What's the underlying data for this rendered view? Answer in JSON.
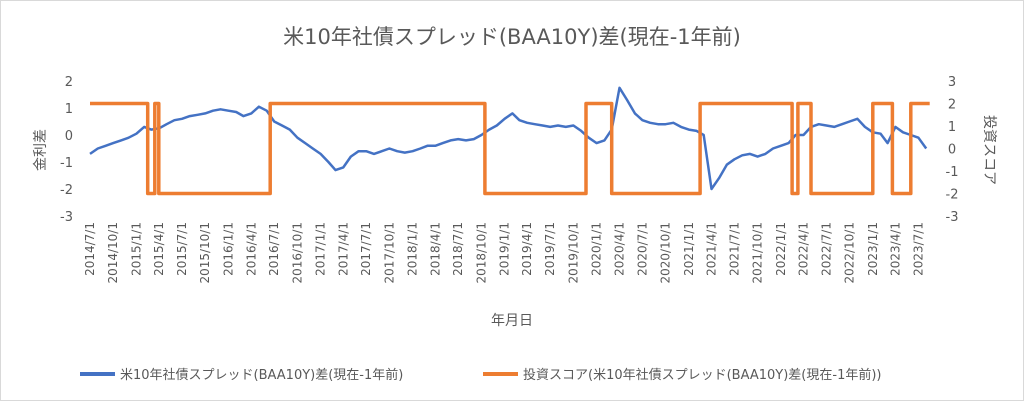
{
  "chart_data": {
    "type": "line",
    "title": "米10年社債スプレッド(BAA10Y)差(現在-1年前)",
    "xlabel": "年月日",
    "ylabel_left": "金利差",
    "ylabel_right": "投資スコア",
    "ylim_left": [
      -3,
      2
    ],
    "ylim_right": [
      -3,
      3
    ],
    "yticks_left": [
      "2",
      "1",
      "0",
      "-1",
      "-2",
      "-3"
    ],
    "yticks_right": [
      "3",
      "2",
      "1",
      "0",
      "-1",
      "-2",
      "-3"
    ],
    "xrange": [
      "2014-07-01",
      "2023-09-01"
    ],
    "xticks": [
      "2014/7/1",
      "2014/10/1",
      "2015/1/1",
      "2015/4/1",
      "2015/7/1",
      "2015/10/1",
      "2016/1/1",
      "2016/4/1",
      "2016/7/1",
      "2016/10/1",
      "2017/1/1",
      "2017/4/1",
      "2017/7/1",
      "2017/10/1",
      "2018/1/1",
      "2018/4/1",
      "2018/7/1",
      "2018/10/1",
      "2019/1/1",
      "2019/4/1",
      "2019/7/1",
      "2019/10/1",
      "2020/1/1",
      "2020/4/1",
      "2020/7/1",
      "2020/10/1",
      "2021/1/1",
      "2021/4/1",
      "2021/7/1",
      "2021/10/1",
      "2022/1/1",
      "2022/4/1",
      "2022/7/1",
      "2022/10/1",
      "2023/1/1",
      "2023/4/1",
      "2023/7/1"
    ],
    "grid": false,
    "legend_position": "bottom",
    "series": [
      {
        "name": "米10年社債スプレッド(BAA10Y)差(現在-1年前)",
        "axis": "left",
        "color": "#4472C4",
        "points": [
          [
            "2014-07-01",
            -0.7
          ],
          [
            "2014-08-01",
            -0.5
          ],
          [
            "2014-09-01",
            -0.4
          ],
          [
            "2014-10-01",
            -0.3
          ],
          [
            "2014-11-01",
            -0.2
          ],
          [
            "2014-12-01",
            -0.1
          ],
          [
            "2015-01-01",
            0.05
          ],
          [
            "2015-02-01",
            0.3
          ],
          [
            "2015-03-01",
            0.2
          ],
          [
            "2015-04-01",
            0.25
          ],
          [
            "2015-05-01",
            0.4
          ],
          [
            "2015-06-01",
            0.55
          ],
          [
            "2015-07-01",
            0.6
          ],
          [
            "2015-08-01",
            0.7
          ],
          [
            "2015-09-01",
            0.75
          ],
          [
            "2015-10-01",
            0.8
          ],
          [
            "2015-11-01",
            0.9
          ],
          [
            "2015-12-01",
            0.95
          ],
          [
            "2016-01-01",
            0.9
          ],
          [
            "2016-02-01",
            0.85
          ],
          [
            "2016-03-01",
            0.7
          ],
          [
            "2016-04-01",
            0.8
          ],
          [
            "2016-05-01",
            1.05
          ],
          [
            "2016-06-01",
            0.9
          ],
          [
            "2016-07-01",
            0.5
          ],
          [
            "2016-08-01",
            0.35
          ],
          [
            "2016-09-01",
            0.2
          ],
          [
            "2016-10-01",
            -0.1
          ],
          [
            "2016-11-01",
            -0.3
          ],
          [
            "2016-12-01",
            -0.5
          ],
          [
            "2017-01-01",
            -0.7
          ],
          [
            "2017-02-01",
            -1.0
          ],
          [
            "2017-03-01",
            -1.3
          ],
          [
            "2017-04-01",
            -1.2
          ],
          [
            "2017-05-01",
            -0.8
          ],
          [
            "2017-06-01",
            -0.6
          ],
          [
            "2017-07-01",
            -0.6
          ],
          [
            "2017-08-01",
            -0.7
          ],
          [
            "2017-09-01",
            -0.6
          ],
          [
            "2017-10-01",
            -0.5
          ],
          [
            "2017-11-01",
            -0.6
          ],
          [
            "2017-12-01",
            -0.65
          ],
          [
            "2018-01-01",
            -0.6
          ],
          [
            "2018-02-01",
            -0.5
          ],
          [
            "2018-03-01",
            -0.4
          ],
          [
            "2018-04-01",
            -0.4
          ],
          [
            "2018-05-01",
            -0.3
          ],
          [
            "2018-06-01",
            -0.2
          ],
          [
            "2018-07-01",
            -0.15
          ],
          [
            "2018-08-01",
            -0.2
          ],
          [
            "2018-09-01",
            -0.15
          ],
          [
            "2018-10-01",
            0.0
          ],
          [
            "2018-11-01",
            0.2
          ],
          [
            "2018-12-01",
            0.35
          ],
          [
            "2019-01-01",
            0.6
          ],
          [
            "2019-02-01",
            0.8
          ],
          [
            "2019-03-01",
            0.55
          ],
          [
            "2019-04-01",
            0.45
          ],
          [
            "2019-05-01",
            0.4
          ],
          [
            "2019-06-01",
            0.35
          ],
          [
            "2019-07-01",
            0.3
          ],
          [
            "2019-08-01",
            0.35
          ],
          [
            "2019-09-01",
            0.3
          ],
          [
            "2019-10-01",
            0.35
          ],
          [
            "2019-11-01",
            0.15
          ],
          [
            "2019-12-01",
            -0.1
          ],
          [
            "2020-01-01",
            -0.3
          ],
          [
            "2020-02-01",
            -0.2
          ],
          [
            "2020-03-01",
            0.2
          ],
          [
            "2020-04-01",
            1.75
          ],
          [
            "2020-05-01",
            1.3
          ],
          [
            "2020-06-01",
            0.8
          ],
          [
            "2020-07-01",
            0.55
          ],
          [
            "2020-08-01",
            0.45
          ],
          [
            "2020-09-01",
            0.4
          ],
          [
            "2020-10-01",
            0.4
          ],
          [
            "2020-11-01",
            0.45
          ],
          [
            "2020-12-01",
            0.3
          ],
          [
            "2021-01-01",
            0.2
          ],
          [
            "2021-02-01",
            0.15
          ],
          [
            "2021-03-01",
            0.0
          ],
          [
            "2021-04-01",
            -2.0
          ],
          [
            "2021-05-01",
            -1.6
          ],
          [
            "2021-06-01",
            -1.1
          ],
          [
            "2021-07-01",
            -0.9
          ],
          [
            "2021-08-01",
            -0.75
          ],
          [
            "2021-09-01",
            -0.7
          ],
          [
            "2021-10-01",
            -0.8
          ],
          [
            "2021-11-01",
            -0.7
          ],
          [
            "2021-12-01",
            -0.5
          ],
          [
            "2022-01-01",
            -0.4
          ],
          [
            "2022-02-01",
            -0.3
          ],
          [
            "2022-03-01",
            0.0
          ],
          [
            "2022-04-01",
            0.0
          ],
          [
            "2022-05-01",
            0.3
          ],
          [
            "2022-06-01",
            0.4
          ],
          [
            "2022-07-01",
            0.35
          ],
          [
            "2022-08-01",
            0.3
          ],
          [
            "2022-09-01",
            0.4
          ],
          [
            "2022-10-01",
            0.5
          ],
          [
            "2022-11-01",
            0.6
          ],
          [
            "2022-12-01",
            0.3
          ],
          [
            "2023-01-01",
            0.1
          ],
          [
            "2023-02-01",
            0.05
          ],
          [
            "2023-03-01",
            -0.3
          ],
          [
            "2023-04-01",
            0.3
          ],
          [
            "2023-05-01",
            0.1
          ],
          [
            "2023-06-01",
            0.0
          ],
          [
            "2023-07-01",
            -0.1
          ],
          [
            "2023-08-01",
            -0.5
          ]
        ]
      },
      {
        "name": "投資スコア(米10年社債スプレッド(BAA10Y)差(現在-1年前))",
        "axis": "right",
        "color": "#ED7D31",
        "points": [
          [
            "2014-07-01",
            2
          ],
          [
            "2015-02-15",
            2
          ],
          [
            "2015-02-15",
            -2
          ],
          [
            "2015-03-15",
            -2
          ],
          [
            "2015-03-15",
            2
          ],
          [
            "2015-03-31",
            2
          ],
          [
            "2015-03-31",
            -2
          ],
          [
            "2016-06-15",
            -2
          ],
          [
            "2016-06-15",
            2
          ],
          [
            "2018-10-15",
            2
          ],
          [
            "2018-10-15",
            -2
          ],
          [
            "2019-11-20",
            -2
          ],
          [
            "2019-11-20",
            2
          ],
          [
            "2020-03-01",
            2
          ],
          [
            "2020-03-01",
            -2
          ],
          [
            "2021-02-15",
            -2
          ],
          [
            "2021-02-15",
            2
          ],
          [
            "2022-02-15",
            2
          ],
          [
            "2022-02-15",
            -2
          ],
          [
            "2022-03-10",
            -2
          ],
          [
            "2022-03-10",
            2
          ],
          [
            "2022-05-01",
            2
          ],
          [
            "2022-05-01",
            -2
          ],
          [
            "2023-01-01",
            -2
          ],
          [
            "2023-01-01",
            2
          ],
          [
            "2023-03-20",
            2
          ],
          [
            "2023-03-20",
            -2
          ],
          [
            "2023-06-01",
            -2
          ],
          [
            "2023-06-01",
            2
          ],
          [
            "2023-08-15",
            2
          ]
        ]
      }
    ]
  }
}
